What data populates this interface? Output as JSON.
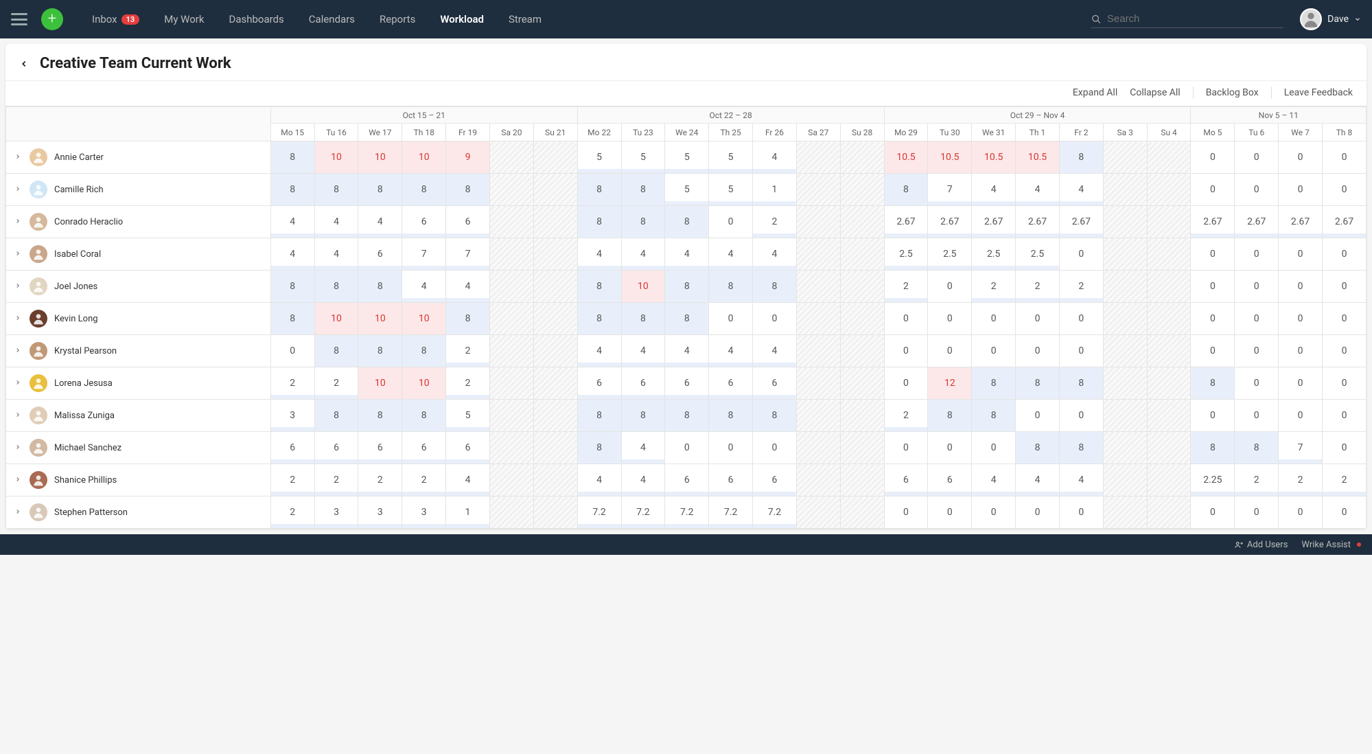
{
  "colors": {
    "topbar_bg": "#1e2e3e",
    "accent_green": "#3dc13c",
    "badge_red": "#e53e3e",
    "cell_full": "#e8effa",
    "cell_over": "#fce8e8",
    "over_text": "#d33",
    "border": "#e4e4e4"
  },
  "nav": {
    "items": [
      {
        "label": "Inbox",
        "badge": "13"
      },
      {
        "label": "My Work"
      },
      {
        "label": "Dashboards"
      },
      {
        "label": "Calendars"
      },
      {
        "label": "Reports"
      },
      {
        "label": "Workload",
        "active": true
      },
      {
        "label": "Stream"
      }
    ],
    "search_placeholder": "Search",
    "user_name": "Dave"
  },
  "page": {
    "title": "Creative Team Current Work",
    "actions": {
      "expand": "Expand All",
      "collapse": "Collapse All",
      "backlog": "Backlog Box",
      "feedback": "Leave Feedback"
    }
  },
  "footer": {
    "add_users": "Add Users",
    "assist": "Wrike Assist"
  },
  "weeks": [
    {
      "label": "Oct 15 – 21",
      "days": [
        "Mo 15",
        "Tu 16",
        "We 17",
        "Th 18",
        "Fr 19",
        "Sa 20",
        "Su 21"
      ]
    },
    {
      "label": "Oct 22 – 28",
      "days": [
        "Mo 22",
        "Tu 23",
        "We 24",
        "Th 25",
        "Fr 26",
        "Sa 27",
        "Su 28"
      ]
    },
    {
      "label": "Oct 29 – Nov 4",
      "days": [
        "Mo 29",
        "Tu 30",
        "We 31",
        "Th 1",
        "Fr 2",
        "Sa 3",
        "Su 4"
      ]
    },
    {
      "label": "Nov 5 – 11",
      "days": [
        "Mo 5",
        "Tu 6",
        "We 7",
        "Th 8"
      ]
    }
  ],
  "capacity": 8,
  "weekend_indices": [
    5,
    6,
    12,
    13,
    19,
    20
  ],
  "people": [
    {
      "name": "Annie Carter",
      "avatar_bg": "#e9c9a1",
      "cells": [
        8,
        10,
        10,
        10,
        9,
        null,
        null,
        5,
        5,
        5,
        5,
        4,
        null,
        null,
        10.5,
        10.5,
        10.5,
        10.5,
        8,
        null,
        null,
        0,
        0,
        0,
        0
      ]
    },
    {
      "name": "Camille Rich",
      "avatar_bg": "#cfe6f5",
      "cells": [
        8,
        8,
        8,
        8,
        8,
        null,
        null,
        8,
        8,
        5,
        5,
        1,
        null,
        null,
        8,
        7,
        4,
        4,
        4,
        null,
        null,
        0,
        0,
        0,
        0
      ]
    },
    {
      "name": "Conrado Heraclio",
      "avatar_bg": "#d6b99c",
      "cells": [
        4,
        4,
        4,
        6,
        6,
        null,
        null,
        8,
        8,
        8,
        0,
        2,
        null,
        null,
        2.67,
        2.67,
        2.67,
        2.67,
        2.67,
        null,
        null,
        2.67,
        2.67,
        2.67,
        2.67
      ]
    },
    {
      "name": "Isabel Coral",
      "avatar_bg": "#caa68b",
      "cells": [
        4,
        4,
        6,
        7,
        7,
        null,
        null,
        4,
        4,
        4,
        4,
        4,
        null,
        null,
        2.5,
        2.5,
        2.5,
        2.5,
        0,
        null,
        null,
        0,
        0,
        0,
        0
      ]
    },
    {
      "name": "Joel Jones",
      "avatar_bg": "#e2d5c1",
      "cells": [
        8,
        8,
        8,
        4,
        4,
        null,
        null,
        8,
        10,
        8,
        8,
        8,
        null,
        null,
        2,
        0,
        2,
        2,
        2,
        null,
        null,
        0,
        0,
        0,
        0
      ]
    },
    {
      "name": "Kevin Long",
      "avatar_bg": "#6b3e2e",
      "cells": [
        8,
        10,
        10,
        10,
        8,
        null,
        null,
        8,
        8,
        8,
        0,
        0,
        null,
        null,
        0,
        0,
        0,
        0,
        0,
        null,
        null,
        0,
        0,
        0,
        0
      ]
    },
    {
      "name": "Krystal Pearson",
      "avatar_bg": "#c19876",
      "cells": [
        0,
        8,
        8,
        8,
        2,
        null,
        null,
        4,
        4,
        4,
        4,
        4,
        null,
        null,
        0,
        0,
        0,
        0,
        0,
        null,
        null,
        0,
        0,
        0,
        0
      ]
    },
    {
      "name": "Lorena Jesusa",
      "avatar_bg": "#e9bf3c",
      "cells": [
        2,
        2,
        10,
        10,
        2,
        null,
        null,
        6,
        6,
        6,
        6,
        6,
        null,
        null,
        0,
        12,
        8,
        8,
        8,
        null,
        null,
        8,
        0,
        0,
        0
      ]
    },
    {
      "name": "Malissa Zuniga",
      "avatar_bg": "#e0cdb7",
      "cells": [
        3,
        8,
        8,
        8,
        5,
        null,
        null,
        8,
        8,
        8,
        8,
        8,
        null,
        null,
        2,
        8,
        8,
        0,
        0,
        null,
        null,
        0,
        0,
        0,
        0
      ]
    },
    {
      "name": "Michael Sanchez",
      "avatar_bg": "#d1b9a2",
      "cells": [
        6,
        6,
        6,
        6,
        6,
        null,
        null,
        8,
        4,
        0,
        0,
        0,
        null,
        null,
        0,
        0,
        0,
        8,
        8,
        null,
        null,
        8,
        8,
        7,
        0
      ]
    },
    {
      "name": "Shanice Phillips",
      "avatar_bg": "#a96b52",
      "cells": [
        2,
        2,
        2,
        2,
        4,
        null,
        null,
        4,
        4,
        6,
        6,
        6,
        null,
        null,
        6,
        6,
        4,
        4,
        4,
        null,
        null,
        2.25,
        2,
        2,
        2
      ]
    },
    {
      "name": "Stephen Patterson",
      "avatar_bg": "#d8c8b8",
      "cells": [
        2,
        3,
        3,
        3,
        1,
        null,
        null,
        7.2,
        7.2,
        7.2,
        7.2,
        7.2,
        null,
        null,
        0,
        0,
        0,
        0,
        0,
        null,
        null,
        0,
        0,
        0,
        0
      ]
    }
  ]
}
